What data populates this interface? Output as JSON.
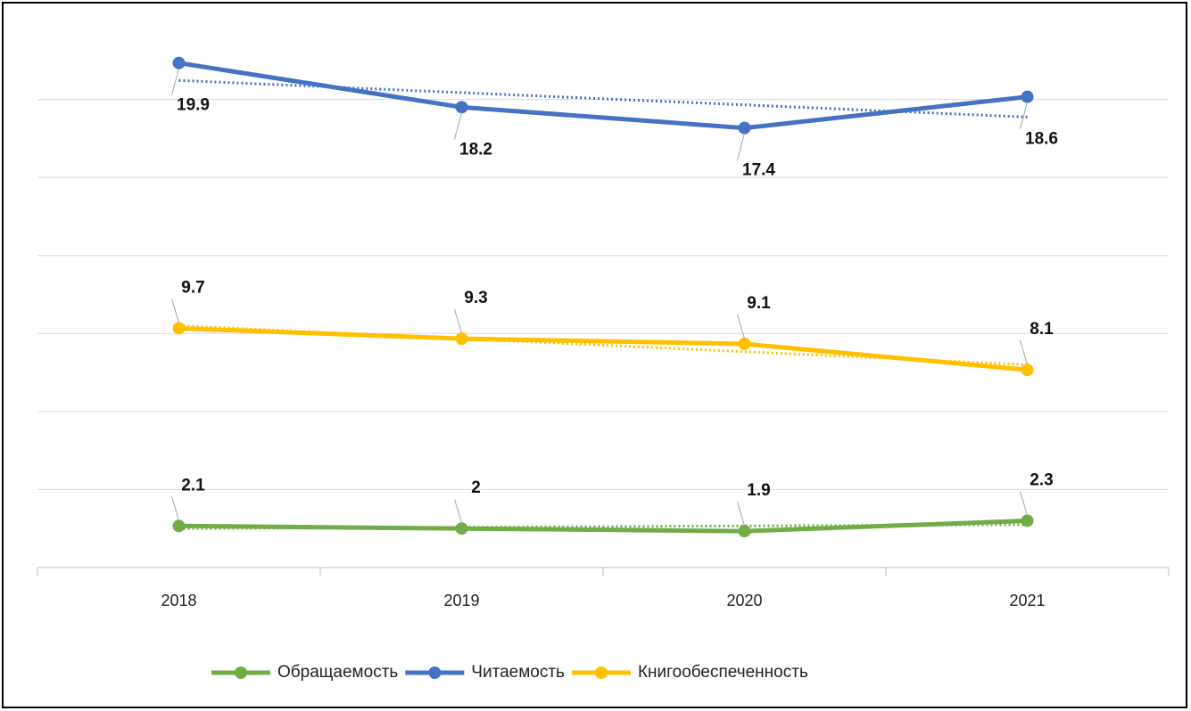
{
  "chart_data": {
    "type": "line",
    "categories": [
      "2018",
      "2019",
      "2020",
      "2021"
    ],
    "series": [
      {
        "name": "Обращаемость",
        "color": "#70ad47",
        "values": [
          2.1,
          2,
          1.9,
          2.3
        ],
        "label_position": "above"
      },
      {
        "name": "Читаемость",
        "color": "#4472c4",
        "values": [
          19.9,
          18.2,
          17.4,
          18.6
        ],
        "label_position": "below"
      },
      {
        "name": "Книгообеспеченность",
        "color": "#ffc000",
        "values": [
          9.7,
          9.3,
          9.1,
          8.1
        ],
        "label_position": "above"
      }
    ],
    "trendline": "linear",
    "ylim": [
      0.5,
      21.5
    ],
    "yticks": [
      0.5,
      3.5,
      6.5,
      9.5,
      12.5,
      15.5,
      18.5
    ],
    "grid": true,
    "legend": "bottom"
  }
}
